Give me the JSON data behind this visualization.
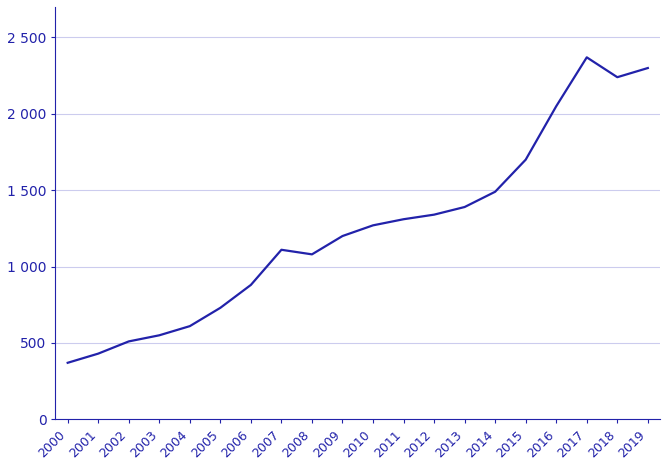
{
  "years": [
    2000,
    2001,
    2002,
    2003,
    2004,
    2005,
    2006,
    2007,
    2008,
    2009,
    2010,
    2011,
    2012,
    2013,
    2014,
    2015,
    2016,
    2017,
    2018,
    2019
  ],
  "values": [
    370,
    430,
    510,
    550,
    610,
    730,
    880,
    1110,
    1080,
    1200,
    1270,
    1310,
    1340,
    1390,
    1490,
    1700,
    2050,
    2370,
    2240,
    2300
  ],
  "line_color": "#2222AA",
  "background_color": "#ffffff",
  "grid_color": "#ccccee",
  "ylim": [
    0,
    2700
  ],
  "yticks": [
    0,
    500,
    1000,
    1500,
    2000,
    2500
  ],
  "ytick_labels": [
    "0",
    "500",
    "1 000",
    "1 500",
    "2 000",
    "2 500"
  ],
  "tick_color": "#2222AA",
  "axis_color": "#2222AA",
  "line_width": 1.6
}
